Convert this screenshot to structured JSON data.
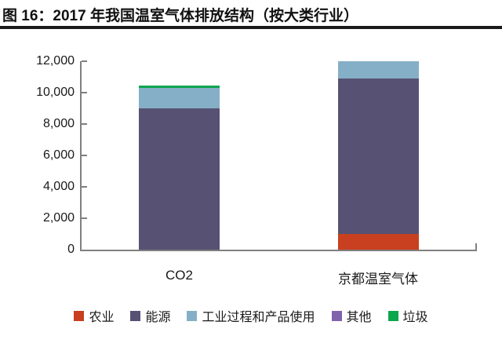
{
  "title": "图 16：2017 年我国温室气体排放结构（按大类行业）",
  "chart_data": {
    "type": "bar",
    "stacked": true,
    "title": "2017 年我国温室气体排放结构（按大类行业）",
    "categories": [
      "CO2",
      "京都温室气体"
    ],
    "series": [
      {
        "name": "农业",
        "color": "#C8401F",
        "values": [
          0,
          1000
        ]
      },
      {
        "name": "能源",
        "color": "#575273",
        "values": [
          9000,
          9900
        ]
      },
      {
        "name": "工业过程和产品使用",
        "color": "#85AFC6",
        "values": [
          1300,
          1100
        ]
      },
      {
        "name": "其他",
        "color": "#7E62AB",
        "values": [
          0,
          0
        ]
      },
      {
        "name": "垃圾",
        "color": "#0CA64E",
        "values": [
          150,
          0
        ]
      }
    ],
    "totals": [
      10450,
      12000
    ],
    "xlabel": "",
    "ylabel": "",
    "ylim": [
      0,
      12000
    ],
    "ytick_step": 2000,
    "ytick_labels": [
      "0",
      "2,000",
      "4,000",
      "6,000",
      "8,000",
      "10,000",
      "12,000"
    ],
    "grid": false,
    "legend_position": "bottom",
    "axis_color": "#808080"
  }
}
